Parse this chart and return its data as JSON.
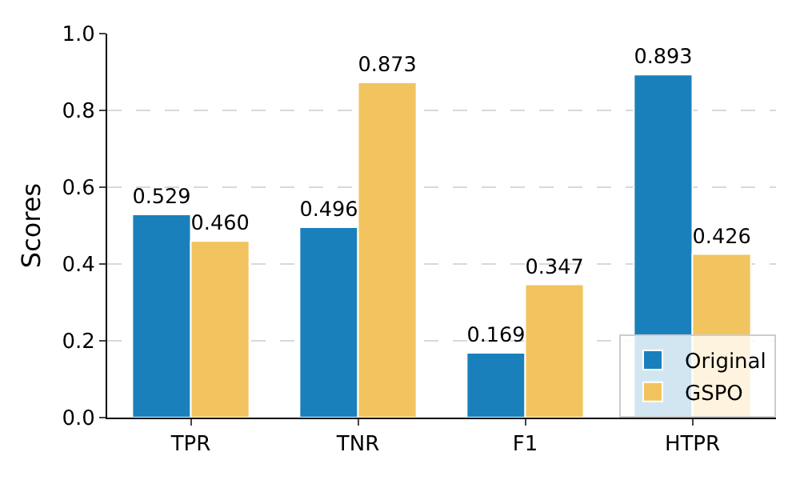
{
  "chart_data": {
    "type": "bar",
    "ylabel": "Scores",
    "categories": [
      "TPR",
      "TNR",
      "F1",
      "HTPR"
    ],
    "series": [
      {
        "name": "Original",
        "color": "#1a80bb",
        "values": [
          0.529,
          0.496,
          0.169,
          0.893
        ],
        "value_labels": [
          "0.529",
          "0.496",
          "0.169",
          "0.893"
        ]
      },
      {
        "name": "GSPO",
        "color": "#f2c45f",
        "values": [
          0.46,
          0.873,
          0.347,
          0.426
        ],
        "value_labels": [
          "0.460",
          "0.873",
          "0.347",
          "0.426"
        ]
      }
    ],
    "ylim": [
      0,
      1
    ],
    "yticks": [
      {
        "value": 0,
        "label": "0.0"
      },
      {
        "value": 0.2,
        "label": "0.2"
      },
      {
        "value": 0.4,
        "label": "0.4"
      },
      {
        "value": 0.6,
        "label": "0.6"
      },
      {
        "value": 0.8,
        "label": "0.8"
      },
      {
        "value": 1,
        "label": "1.0"
      }
    ],
    "grid": "y",
    "legend": "bottom right"
  }
}
